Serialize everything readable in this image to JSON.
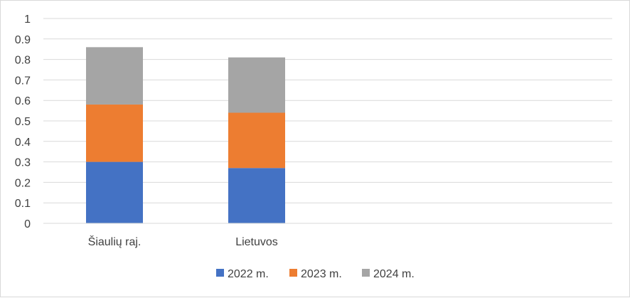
{
  "chart_data": {
    "type": "bar",
    "stacked": true,
    "categories": [
      "Šiaulių raj.",
      "Lietuvos"
    ],
    "series": [
      {
        "name": "2022 m.",
        "values": [
          0.3,
          0.27
        ],
        "color": "#4472C4"
      },
      {
        "name": "2023 m.",
        "values": [
          0.28,
          0.27
        ],
        "color": "#ED7D31"
      },
      {
        "name": "2024 m.",
        "values": [
          0.28,
          0.27
        ],
        "color": "#A5A5A5"
      }
    ],
    "ylim": [
      0,
      1
    ],
    "yticks": [
      "0",
      "0.1",
      "0.2",
      "0.3",
      "0.4",
      "0.5",
      "0.6",
      "0.7",
      "0.8",
      "0.9",
      "1"
    ],
    "grid": true,
    "legend_position": "bottom",
    "title": "",
    "xlabel": "",
    "ylabel": ""
  }
}
